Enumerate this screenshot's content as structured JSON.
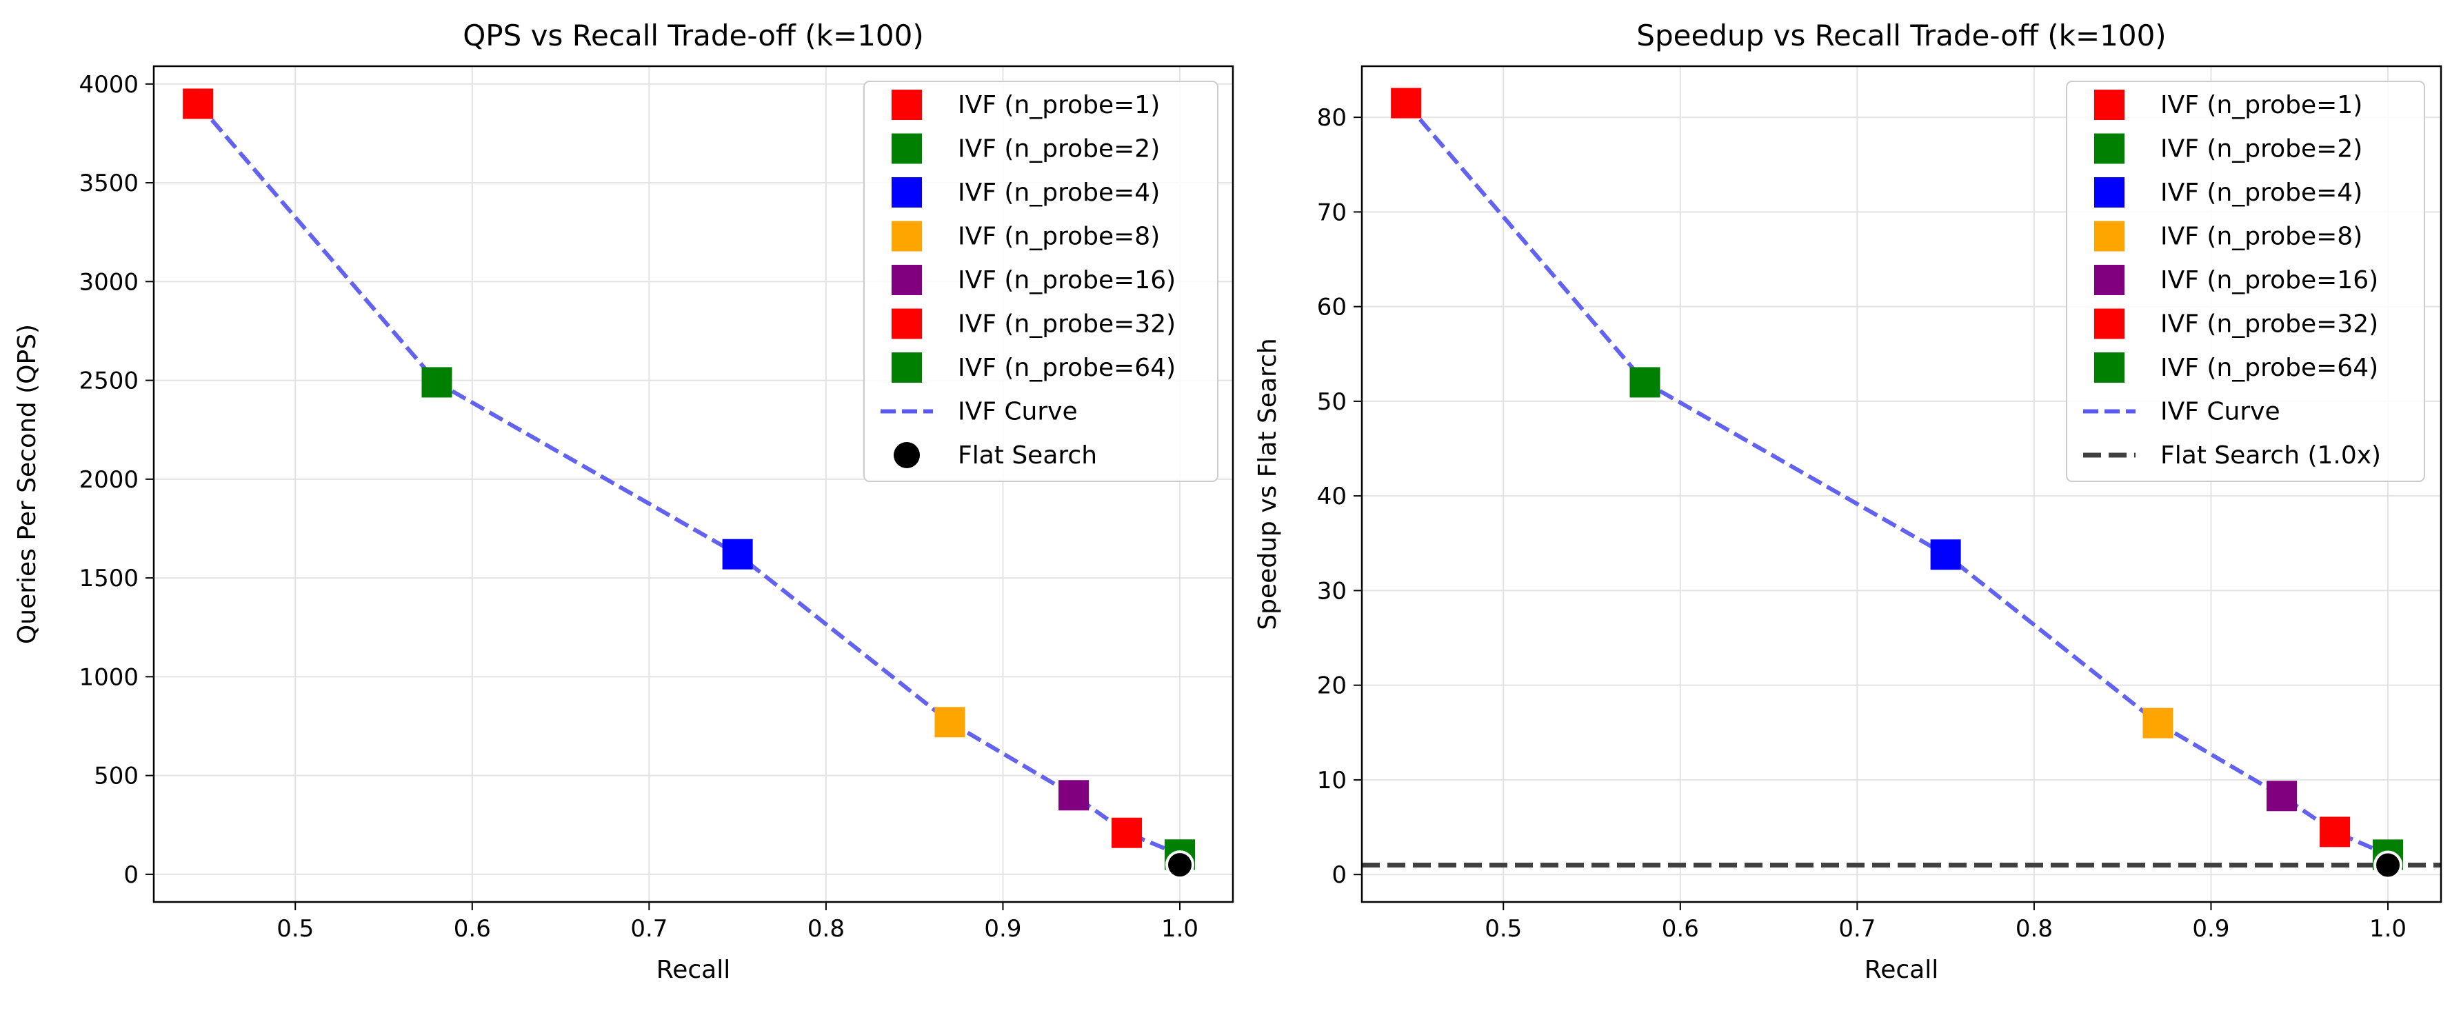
{
  "chart_data": [
    {
      "type": "scatter",
      "title": "QPS vs Recall Trade-off (k=100)",
      "xlabel": "Recall",
      "ylabel": "Queries Per Second (QPS)",
      "xlim": [
        0.42,
        1.03
      ],
      "ylim": [
        -140,
        4090
      ],
      "xticks": [
        0.5,
        0.6,
        0.7,
        0.8,
        0.9,
        1.0
      ],
      "xtick_labels": [
        "0.5",
        "0.6",
        "0.7",
        "0.8",
        "0.9",
        "1.0"
      ],
      "yticks": [
        0,
        500,
        1000,
        1500,
        2000,
        2500,
        3000,
        3500,
        4000
      ],
      "ytick_labels": [
        "0",
        "500",
        "1000",
        "1500",
        "2000",
        "2500",
        "3000",
        "3500",
        "4000"
      ],
      "grid": true,
      "legend_position": "top-right",
      "series": [
        {
          "name": "IVF (n_probe=1)",
          "marker": "square",
          "color": "#ff0000",
          "x": [
            0.445
          ],
          "y": [
            3900
          ]
        },
        {
          "name": "IVF (n_probe=2)",
          "marker": "square",
          "color": "#008000",
          "x": [
            0.58
          ],
          "y": [
            2490
          ]
        },
        {
          "name": "IVF (n_probe=4)",
          "marker": "square",
          "color": "#0000ff",
          "x": [
            0.75
          ],
          "y": [
            1620
          ]
        },
        {
          "name": "IVF (n_probe=8)",
          "marker": "square",
          "color": "#ffa500",
          "x": [
            0.87
          ],
          "y": [
            770
          ]
        },
        {
          "name": "IVF (n_probe=16)",
          "marker": "square",
          "color": "#800080",
          "x": [
            0.94
          ],
          "y": [
            400
          ]
        },
        {
          "name": "IVF (n_probe=32)",
          "marker": "square",
          "color": "#ff0000",
          "x": [
            0.97
          ],
          "y": [
            210
          ]
        },
        {
          "name": "IVF (n_probe=64)",
          "marker": "square",
          "color": "#008000",
          "x": [
            1.0
          ],
          "y": [
            100
          ]
        },
        {
          "name": "IVF Curve",
          "marker": "dashed-line",
          "color": "#5a5af0",
          "x": [
            0.445,
            0.58,
            0.75,
            0.87,
            0.94,
            0.97,
            1.0
          ],
          "y": [
            3900,
            2490,
            1620,
            770,
            400,
            210,
            100
          ]
        },
        {
          "name": "Flat Search",
          "marker": "circle",
          "color": "#000000",
          "x": [
            1.0
          ],
          "y": [
            48
          ]
        }
      ]
    },
    {
      "type": "scatter",
      "title": "Speedup vs Recall Trade-off (k=100)",
      "xlabel": "Recall",
      "ylabel": "Speedup vs Flat Search",
      "xlim": [
        0.42,
        1.03
      ],
      "ylim": [
        -2.9,
        85.4
      ],
      "xticks": [
        0.5,
        0.6,
        0.7,
        0.8,
        0.9,
        1.0
      ],
      "xtick_labels": [
        "0.5",
        "0.6",
        "0.7",
        "0.8",
        "0.9",
        "1.0"
      ],
      "yticks": [
        0,
        10,
        20,
        30,
        40,
        50,
        60,
        70,
        80
      ],
      "ytick_labels": [
        "0",
        "10",
        "20",
        "30",
        "40",
        "50",
        "60",
        "70",
        "80"
      ],
      "grid": true,
      "legend_position": "top-right",
      "series": [
        {
          "name": "IVF (n_probe=1)",
          "marker": "square",
          "color": "#ff0000",
          "x": [
            0.445
          ],
          "y": [
            81.5
          ]
        },
        {
          "name": "IVF (n_probe=2)",
          "marker": "square",
          "color": "#008000",
          "x": [
            0.58
          ],
          "y": [
            52
          ]
        },
        {
          "name": "IVF (n_probe=4)",
          "marker": "square",
          "color": "#0000ff",
          "x": [
            0.75
          ],
          "y": [
            33.8
          ]
        },
        {
          "name": "IVF (n_probe=8)",
          "marker": "square",
          "color": "#ffa500",
          "x": [
            0.87
          ],
          "y": [
            16
          ]
        },
        {
          "name": "IVF (n_probe=16)",
          "marker": "square",
          "color": "#800080",
          "x": [
            0.94
          ],
          "y": [
            8.3
          ]
        },
        {
          "name": "IVF (n_probe=32)",
          "marker": "square",
          "color": "#ff0000",
          "x": [
            0.97
          ],
          "y": [
            4.5
          ]
        },
        {
          "name": "IVF (n_probe=64)",
          "marker": "square",
          "color": "#008000",
          "x": [
            1.0
          ],
          "y": [
            2.1
          ]
        },
        {
          "name": "IVF Curve",
          "marker": "dashed-line",
          "color": "#5a5af0",
          "x": [
            0.445,
            0.58,
            0.75,
            0.87,
            0.94,
            0.97,
            1.0
          ],
          "y": [
            81.5,
            52,
            33.8,
            16,
            8.3,
            4.5,
            2.1
          ]
        },
        {
          "name": "Flat Search (1.0x)",
          "marker": "dashed-hline",
          "color": "#404040",
          "y": [
            1.0
          ]
        },
        {
          "name": "",
          "marker": "circle",
          "color": "#000000",
          "x": [
            1.0
          ],
          "y": [
            1.0
          ]
        }
      ]
    }
  ]
}
